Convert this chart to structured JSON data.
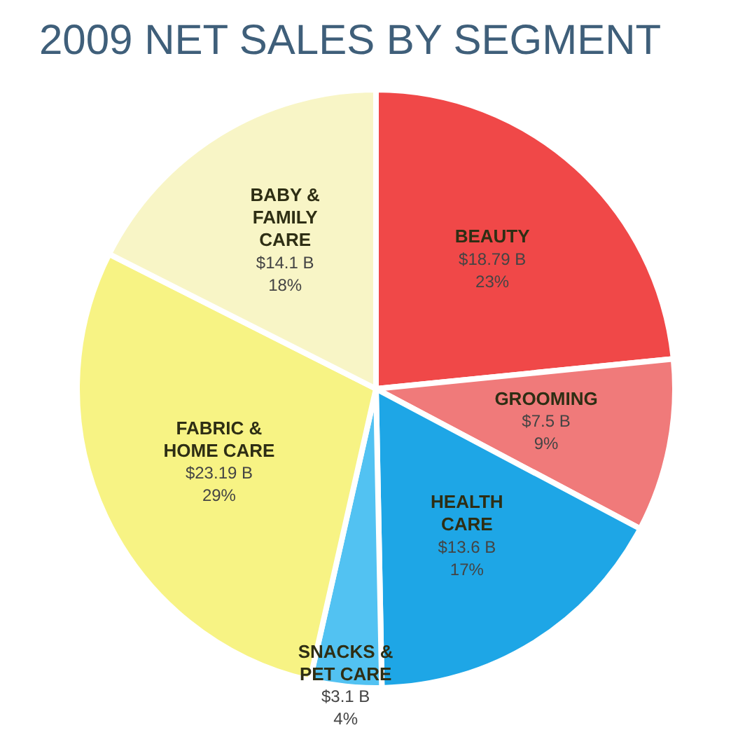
{
  "chart_data": {
    "type": "pie",
    "title": "2009 NET SALES BY SEGMENT",
    "categories": [
      "BEAUTY",
      "GROOMING",
      "HEALTH CARE",
      "SNACKS & PET CARE",
      "FABRIC & HOME CARE",
      "BABY & FAMILY CARE"
    ],
    "values": [
      18.79,
      7.5,
      13.6,
      3.1,
      23.19,
      14.1
    ],
    "value_labels": [
      "$18.79 B\n23%",
      "$7.5 B\n9%",
      "$13.6 B\n17%",
      "$3.1 B\n4%",
      "$23.19 B\n29%",
      "$14.1 B\n18%"
    ],
    "colors": [
      "#f04848",
      "#f07a7a",
      "#1ea6e6",
      "#52c2f2",
      "#f7f384",
      "#f8f5c6"
    ],
    "legend": false
  }
}
